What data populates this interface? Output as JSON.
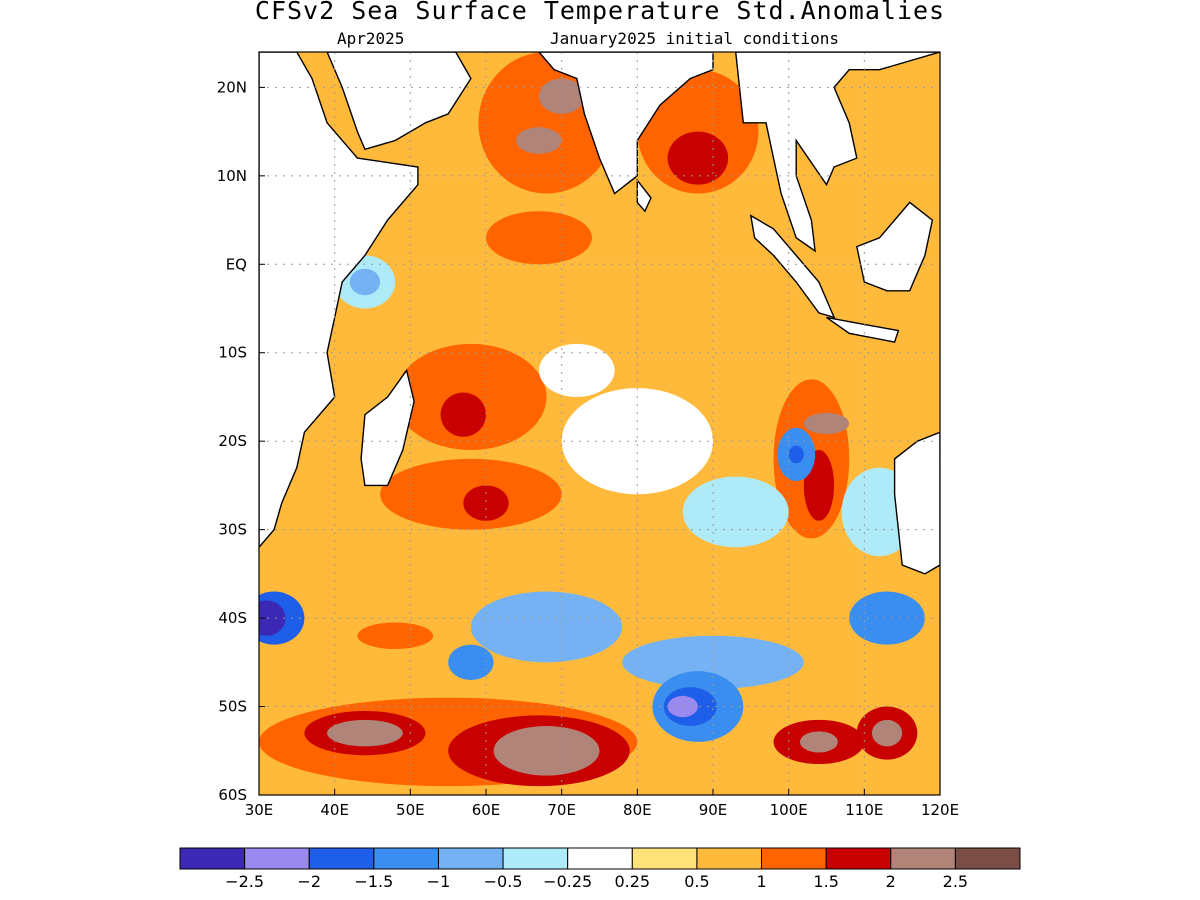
{
  "title": "CFSv2 Sea Surface Temperature Std.Anomalies",
  "subtitle_left": "Apr2025",
  "subtitle_right": "January2025 initial conditions",
  "map": {
    "lon_range": [
      30,
      120
    ],
    "lat_range": [
      -60,
      24
    ],
    "lon_ticks": [
      {
        "value": 30,
        "label": "30E"
      },
      {
        "value": 40,
        "label": "40E"
      },
      {
        "value": 50,
        "label": "50E"
      },
      {
        "value": 60,
        "label": "60E"
      },
      {
        "value": 70,
        "label": "70E"
      },
      {
        "value": 80,
        "label": "80E"
      },
      {
        "value": 90,
        "label": "90E"
      },
      {
        "value": 100,
        "label": "100E"
      },
      {
        "value": 110,
        "label": "110E"
      },
      {
        "value": 120,
        "label": "120E"
      }
    ],
    "lat_ticks": [
      {
        "value": 20,
        "label": "20N"
      },
      {
        "value": 10,
        "label": "10N"
      },
      {
        "value": 0,
        "label": "EQ"
      },
      {
        "value": -10,
        "label": "10S"
      },
      {
        "value": -20,
        "label": "20S"
      },
      {
        "value": -30,
        "label": "30S"
      },
      {
        "value": -40,
        "label": "40S"
      },
      {
        "value": -50,
        "label": "50S"
      },
      {
        "value": -60,
        "label": "60S"
      }
    ],
    "grid": true,
    "land_color": "#ffffff",
    "coast_color": "#000000"
  },
  "colorbar": {
    "colors": [
      "#3b28b4",
      "#9a8af0",
      "#1e5ee8",
      "#3a8ef0",
      "#74b2f4",
      "#aeeaf8",
      "#ffffff",
      "#ffe27a",
      "#ffba3c",
      "#ff6400",
      "#c80000",
      "#b08478",
      "#7a4e44"
    ],
    "labels": [
      "−2.5",
      "−2",
      "−1.5",
      "−1",
      "−0.5",
      "−0.25",
      "0.25",
      "0.5",
      "1",
      "1.5",
      "2",
      "2.5"
    ]
  },
  "regions": [
    {
      "lon": 63,
      "lat": 6,
      "rx": 16,
      "ry": 12,
      "level": 8
    },
    {
      "lon": 67,
      "lat": 3,
      "rx": 7,
      "ry": 3,
      "level": 9
    },
    {
      "lon": 68,
      "lat": 16,
      "rx": 9,
      "ry": 8,
      "level": 9
    },
    {
      "lon": 70,
      "lat": 19,
      "rx": 3,
      "ry": 2,
      "level": 11
    },
    {
      "lon": 67,
      "lat": 14,
      "rx": 3,
      "ry": 1.5,
      "level": 11
    },
    {
      "lon": 88,
      "lat": 15,
      "rx": 8,
      "ry": 7,
      "level": 9
    },
    {
      "lon": 88,
      "lat": 12,
      "rx": 4,
      "ry": 3,
      "level": 10
    },
    {
      "lon": 58,
      "lat": -15,
      "rx": 10,
      "ry": 6,
      "level": 9
    },
    {
      "lon": 57,
      "lat": -17,
      "rx": 3,
      "ry": 2.5,
      "level": 10
    },
    {
      "lon": 58,
      "lat": -26,
      "rx": 12,
      "ry": 4,
      "level": 9
    },
    {
      "lon": 60,
      "lat": -27,
      "rx": 3,
      "ry": 2,
      "level": 10
    },
    {
      "lon": 103,
      "lat": -22,
      "rx": 5,
      "ry": 9,
      "level": 9
    },
    {
      "lon": 104,
      "lat": -25,
      "rx": 2,
      "ry": 4,
      "level": 10
    },
    {
      "lon": 105,
      "lat": -18,
      "rx": 3,
      "ry": 1.2,
      "level": 11
    },
    {
      "lon": 101,
      "lat": -21.5,
      "rx": 2.5,
      "ry": 3,
      "level": 3
    },
    {
      "lon": 101,
      "lat": -21.5,
      "rx": 1,
      "ry": 1,
      "level": 2
    },
    {
      "lon": 93,
      "lat": -28,
      "rx": 7,
      "ry": 4,
      "level": 5
    },
    {
      "lon": 112,
      "lat": -28,
      "rx": 5,
      "ry": 5,
      "level": 5
    },
    {
      "lon": 68,
      "lat": -41,
      "rx": 10,
      "ry": 4,
      "level": 4
    },
    {
      "lon": 58,
      "lat": -45,
      "rx": 3,
      "ry": 2,
      "level": 3
    },
    {
      "lon": 90,
      "lat": -45,
      "rx": 12,
      "ry": 3,
      "level": 4
    },
    {
      "lon": 113,
      "lat": -40,
      "rx": 5,
      "ry": 3,
      "level": 3
    },
    {
      "lon": 32,
      "lat": -40,
      "rx": 4,
      "ry": 3,
      "level": 2
    },
    {
      "lon": 31,
      "lat": -40,
      "rx": 2.5,
      "ry": 2,
      "level": 0
    },
    {
      "lon": 88,
      "lat": -50,
      "rx": 6,
      "ry": 4,
      "level": 3
    },
    {
      "lon": 87,
      "lat": -50,
      "rx": 3.5,
      "ry": 2.2,
      "level": 2
    },
    {
      "lon": 86,
      "lat": -50,
      "rx": 2,
      "ry": 1.2,
      "level": 1
    },
    {
      "lon": 55,
      "lat": -54,
      "rx": 25,
      "ry": 5,
      "level": 9
    },
    {
      "lon": 67,
      "lat": -55,
      "rx": 12,
      "ry": 4,
      "level": 10
    },
    {
      "lon": 68,
      "lat": -55,
      "rx": 7,
      "ry": 2.8,
      "level": 11
    },
    {
      "lon": 44,
      "lat": -53,
      "rx": 8,
      "ry": 2.5,
      "level": 10
    },
    {
      "lon": 44,
      "lat": -53,
      "rx": 5,
      "ry": 1.5,
      "level": 11
    },
    {
      "lon": 104,
      "lat": -54,
      "rx": 6,
      "ry": 2.5,
      "level": 10
    },
    {
      "lon": 104,
      "lat": -54,
      "rx": 2.5,
      "ry": 1.2,
      "level": 11
    },
    {
      "lon": 113,
      "lat": -53,
      "rx": 4,
      "ry": 3,
      "level": 10
    },
    {
      "lon": 113,
      "lat": -53,
      "rx": 2,
      "ry": 1.5,
      "level": 11
    },
    {
      "lon": 48,
      "lat": -42,
      "rx": 5,
      "ry": 1.5,
      "level": 9
    },
    {
      "lon": 80,
      "lat": -20,
      "rx": 10,
      "ry": 6,
      "level": 6
    },
    {
      "lon": 72,
      "lat": -12,
      "rx": 5,
      "ry": 3,
      "level": 6
    },
    {
      "lon": 44,
      "lat": -2,
      "rx": 4,
      "ry": 3,
      "level": 5
    },
    {
      "lon": 44,
      "lat": -2,
      "rx": 2,
      "ry": 1.5,
      "level": 4
    }
  ],
  "land": [
    {
      "name": "africa",
      "points": [
        [
          30,
          24
        ],
        [
          35,
          24
        ],
        [
          37,
          21
        ],
        [
          39,
          16
        ],
        [
          43,
          12
        ],
        [
          51,
          11
        ],
        [
          51,
          9
        ],
        [
          47,
          5
        ],
        [
          44,
          1
        ],
        [
          41,
          -2
        ],
        [
          40,
          -6
        ],
        [
          39,
          -10
        ],
        [
          40,
          -15
        ],
        [
          36,
          -19
        ],
        [
          35,
          -23
        ],
        [
          33,
          -27
        ],
        [
          32,
          -30
        ],
        [
          30,
          -32
        ]
      ]
    },
    {
      "name": "arabia",
      "points": [
        [
          56,
          24
        ],
        [
          58,
          21
        ],
        [
          55,
          17
        ],
        [
          52,
          16
        ],
        [
          48,
          14
        ],
        [
          44,
          13
        ],
        [
          43,
          15
        ],
        [
          41,
          20
        ],
        [
          39,
          24
        ]
      ]
    },
    {
      "name": "india",
      "points": [
        [
          67,
          24
        ],
        [
          69,
          22
        ],
        [
          72,
          21
        ],
        [
          73,
          17
        ],
        [
          75,
          12
        ],
        [
          77,
          8
        ],
        [
          80,
          10
        ],
        [
          80,
          14
        ],
        [
          83,
          18
        ],
        [
          87,
          21
        ],
        [
          90,
          22
        ],
        [
          90,
          24
        ]
      ]
    },
    {
      "name": "sri-lanka",
      "points": [
        [
          80,
          9.5
        ],
        [
          81.8,
          7.5
        ],
        [
          81,
          6
        ],
        [
          80,
          7
        ]
      ]
    },
    {
      "name": "madagascar",
      "points": [
        [
          49.5,
          -12
        ],
        [
          50.5,
          -15.5
        ],
        [
          49,
          -21
        ],
        [
          47,
          -25
        ],
        [
          44,
          -25
        ],
        [
          43.5,
          -22
        ],
        [
          44,
          -17
        ],
        [
          47,
          -15
        ]
      ]
    },
    {
      "name": "se-asia",
      "points": [
        [
          93,
          24
        ],
        [
          94,
          16
        ],
        [
          97,
          16
        ],
        [
          98,
          12
        ],
        [
          99,
          8
        ],
        [
          101,
          3
        ],
        [
          103.5,
          1.5
        ],
        [
          103,
          5
        ],
        [
          101,
          10
        ],
        [
          101,
          14
        ],
        [
          105,
          9
        ],
        [
          106,
          11
        ],
        [
          109,
          12
        ],
        [
          108,
          16
        ],
        [
          106,
          20
        ],
        [
          108,
          22
        ],
        [
          112,
          22
        ],
        [
          120,
          24
        ]
      ]
    },
    {
      "name": "sumatra",
      "points": [
        [
          95,
          5.5
        ],
        [
          98,
          4
        ],
        [
          104,
          -2
        ],
        [
          106,
          -6
        ],
        [
          104,
          -5.5
        ],
        [
          101,
          -2
        ],
        [
          98,
          1
        ],
        [
          95.5,
          3
        ]
      ]
    },
    {
      "name": "java",
      "points": [
        [
          105,
          -6
        ],
        [
          110,
          -6.8
        ],
        [
          114.5,
          -7.5
        ],
        [
          114,
          -8.8
        ],
        [
          108,
          -7.8
        ]
      ]
    },
    {
      "name": "borneo",
      "points": [
        [
          109,
          2
        ],
        [
          112,
          3
        ],
        [
          116,
          7
        ],
        [
          119,
          5
        ],
        [
          118,
          1
        ],
        [
          116,
          -3
        ],
        [
          113,
          -3
        ],
        [
          110,
          -2
        ]
      ]
    },
    {
      "name": "australia",
      "points": [
        [
          114,
          -22
        ],
        [
          114,
          -26
        ],
        [
          115,
          -34
        ],
        [
          118,
          -35
        ],
        [
          120,
          -34
        ],
        [
          120,
          -19
        ],
        [
          117,
          -20
        ]
      ]
    }
  ]
}
